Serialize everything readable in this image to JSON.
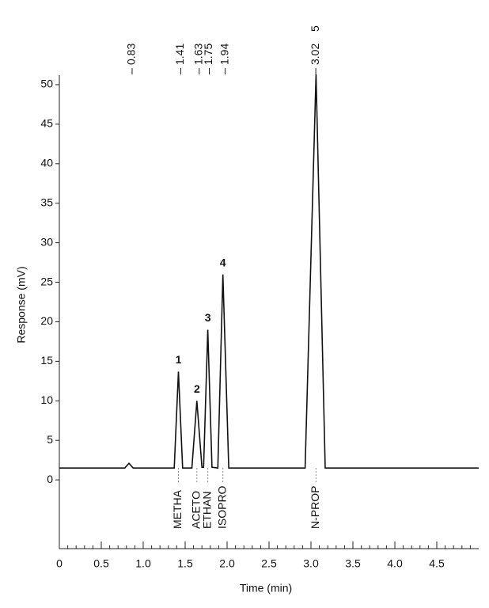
{
  "chart_data": {
    "type": "line",
    "y_label": "Response (mV)",
    "x_label": "Time (min)",
    "x": [
      0,
      0.78,
      0.83,
      0.88,
      1.37,
      1.42,
      1.47,
      1.58,
      1.64,
      1.7,
      1.72,
      1.77,
      1.82,
      1.89,
      1.95,
      2.02,
      2.93,
      3.06,
      3.17,
      5
    ],
    "values": [
      1.5,
      1.5,
      2.1,
      1.5,
      1.5,
      13.7,
      1.5,
      1.5,
      10,
      1.6,
      1.6,
      19,
      1.6,
      1.5,
      26,
      1.5,
      1.5,
      51.3,
      1.5,
      1.5
    ],
    "color": "#111111",
    "xlim": [
      0,
      5
    ],
    "ylim": [
      -8.7,
      51.5
    ],
    "xticks": [
      0,
      0.5,
      {
        "value": 1,
        "label": "1.0"
      },
      1.5,
      {
        "value": 2,
        "label": "2.0"
      },
      2.5,
      {
        "value": 3,
        "label": "3.0"
      },
      3.5,
      {
        "value": 4,
        "label": "4.0"
      },
      4.5
    ],
    "yticks": [
      0,
      5,
      10,
      15,
      20,
      25,
      30,
      35,
      40,
      45,
      50
    ],
    "xminor_step": 0.1,
    "retention_times": [
      0.83,
      1.41,
      1.63,
      1.75,
      1.94,
      3.02
    ],
    "peak_numbers": [
      "1",
      "2",
      "3",
      "4",
      "5"
    ],
    "compounds": [
      "METHA",
      "ACETO",
      "ETHAN",
      "ISOPRO",
      "N-PROP"
    ]
  }
}
